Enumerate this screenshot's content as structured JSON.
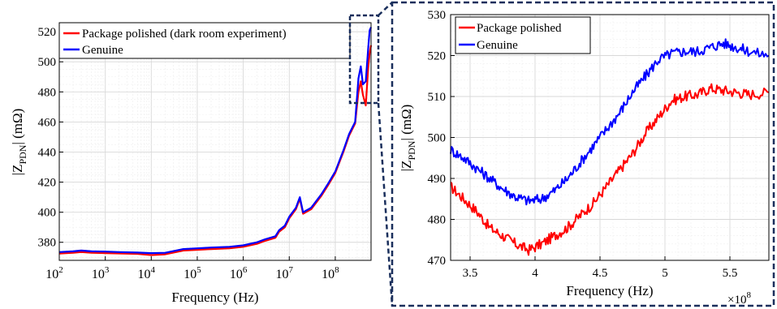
{
  "chart_data": [
    {
      "type": "line",
      "xscale": "log",
      "xlabel": "Frequency (Hz)",
      "ylabel_main": "|Z",
      "ylabel_sub": "PDN",
      "ylabel_tail": "| (mΩ)",
      "xlim": [
        100,
        600000000
      ],
      "ylim": [
        368,
        526
      ],
      "x_ticks": [
        {
          "value": 100,
          "base": "10",
          "exp": "2"
        },
        {
          "value": 1000,
          "base": "10",
          "exp": "3"
        },
        {
          "value": 10000,
          "base": "10",
          "exp": "4"
        },
        {
          "value": 100000,
          "base": "10",
          "exp": "5"
        },
        {
          "value": 1000000,
          "base": "10",
          "exp": "6"
        },
        {
          "value": 10000000,
          "base": "10",
          "exp": "7"
        },
        {
          "value": 100000000,
          "base": "10",
          "exp": "8"
        }
      ],
      "y_ticks": [
        "380",
        "400",
        "420",
        "440",
        "460",
        "480",
        "500",
        "520"
      ],
      "grid": true,
      "legend_position": "top-right",
      "series": [
        {
          "name": "Package polished (dark room experiment)",
          "color": "#ff0000",
          "points": [
            [
              100,
              372.5
            ],
            [
              200,
              373
            ],
            [
              300,
              373.5
            ],
            [
              500,
              373
            ],
            [
              1000,
              372.8
            ],
            [
              2000,
              372.6
            ],
            [
              5000,
              372.3
            ],
            [
              10000,
              371.5
            ],
            [
              20000,
              372
            ],
            [
              50000,
              374.5
            ],
            [
              100000,
              375
            ],
            [
              200000,
              375.5
            ],
            [
              500000,
              376
            ],
            [
              1000000,
              377
            ],
            [
              2000000,
              379
            ],
            [
              3000000,
              381
            ],
            [
              5000000,
              383
            ],
            [
              6000000,
              387
            ],
            [
              8000000,
              390
            ],
            [
              10000000,
              396
            ],
            [
              14000000,
              402
            ],
            [
              17000000,
              409
            ],
            [
              20000000,
              399
            ],
            [
              30000000,
              402
            ],
            [
              50000000,
              411
            ],
            [
              70000000,
              418
            ],
            [
              100000000,
              426
            ],
            [
              150000000,
              440
            ],
            [
              200000000,
              451
            ],
            [
              270000000,
              459
            ],
            [
              320000000,
              480
            ],
            [
              360000000,
              487
            ],
            [
              400000000,
              478
            ],
            [
              460000000,
              471
            ],
            [
              520000000,
              496
            ],
            [
              560000000,
              506
            ],
            [
              600000000,
              511
            ]
          ]
        },
        {
          "name": "Genuine",
          "color": "#0000ff",
          "points": [
            [
              100,
              373.5
            ],
            [
              200,
              374
            ],
            [
              300,
              374.5
            ],
            [
              500,
              374
            ],
            [
              1000,
              373.8
            ],
            [
              2000,
              373.5
            ],
            [
              5000,
              373.2
            ],
            [
              10000,
              372.8
            ],
            [
              20000,
              373
            ],
            [
              50000,
              375.5
            ],
            [
              100000,
              376
            ],
            [
              200000,
              376.5
            ],
            [
              500000,
              377
            ],
            [
              1000000,
              378
            ],
            [
              2000000,
              380
            ],
            [
              3000000,
              382
            ],
            [
              5000000,
              384
            ],
            [
              6000000,
              388
            ],
            [
              8000000,
              391
            ],
            [
              10000000,
              397
            ],
            [
              14000000,
              403
            ],
            [
              17000000,
              410
            ],
            [
              20000000,
              400
            ],
            [
              30000000,
              403
            ],
            [
              50000000,
              412
            ],
            [
              70000000,
              419
            ],
            [
              100000000,
              427
            ],
            [
              150000000,
              441
            ],
            [
              200000000,
              452
            ],
            [
              270000000,
              460
            ],
            [
              320000000,
              489
            ],
            [
              360000000,
              497
            ],
            [
              400000000,
              485
            ],
            [
              460000000,
              487
            ],
            [
              520000000,
              509
            ],
            [
              560000000,
              521
            ],
            [
              600000000,
              523
            ]
          ]
        }
      ]
    },
    {
      "type": "line",
      "xlabel": "Frequency (Hz)",
      "x_multiplier_base": "×10",
      "x_multiplier_exp": "8",
      "ylabel_main": "|Z",
      "ylabel_sub": "PDN",
      "ylabel_tail": "| (mΩ)",
      "xlim": [
        3.35,
        5.8
      ],
      "ylim": [
        470,
        530
      ],
      "x_ticks": [
        "3.5",
        "4",
        "4.5",
        "5",
        "5.5"
      ],
      "y_ticks": [
        "470",
        "480",
        "490",
        "500",
        "510",
        "520",
        "530"
      ],
      "grid": true,
      "legend_position": "top-left",
      "series": [
        {
          "name": "Package polished",
          "color": "#ff0000",
          "points": [
            [
              3.35,
              488
            ],
            [
              3.45,
              485
            ],
            [
              3.55,
              482
            ],
            [
              3.65,
              478
            ],
            [
              3.75,
              476
            ],
            [
              3.85,
              474
            ],
            [
              3.95,
              472.5
            ],
            [
              4.05,
              474
            ],
            [
              4.15,
              476
            ],
            [
              4.25,
              478
            ],
            [
              4.35,
              481
            ],
            [
              4.45,
              484
            ],
            [
              4.55,
              488
            ],
            [
              4.65,
              492
            ],
            [
              4.75,
              496
            ],
            [
              4.85,
              501
            ],
            [
              4.95,
              505
            ],
            [
              5.05,
              509
            ],
            [
              5.15,
              510
            ],
            [
              5.25,
              510.5
            ],
            [
              5.35,
              512
            ],
            [
              5.45,
              511.5
            ],
            [
              5.55,
              511
            ],
            [
              5.65,
              510.5
            ],
            [
              5.8,
              511
            ]
          ]
        },
        {
          "name": "Genuine",
          "color": "#0000ff",
          "points": [
            [
              3.35,
              497
            ],
            [
              3.45,
              495
            ],
            [
              3.55,
              492.5
            ],
            [
              3.65,
              490
            ],
            [
              3.75,
              487.5
            ],
            [
              3.85,
              485.5
            ],
            [
              3.95,
              484.5
            ],
            [
              4.05,
              485
            ],
            [
              4.15,
              487
            ],
            [
              4.25,
              490
            ],
            [
              4.35,
              494
            ],
            [
              4.45,
              498
            ],
            [
              4.55,
              502
            ],
            [
              4.65,
              506
            ],
            [
              4.75,
              511
            ],
            [
              4.85,
              515
            ],
            [
              4.95,
              519
            ],
            [
              5.05,
              520.5
            ],
            [
              5.15,
              521
            ],
            [
              5.25,
              521
            ],
            [
              5.35,
              522
            ],
            [
              5.45,
              523
            ],
            [
              5.55,
              522
            ],
            [
              5.65,
              521
            ],
            [
              5.8,
              520
            ]
          ]
        }
      ]
    }
  ]
}
